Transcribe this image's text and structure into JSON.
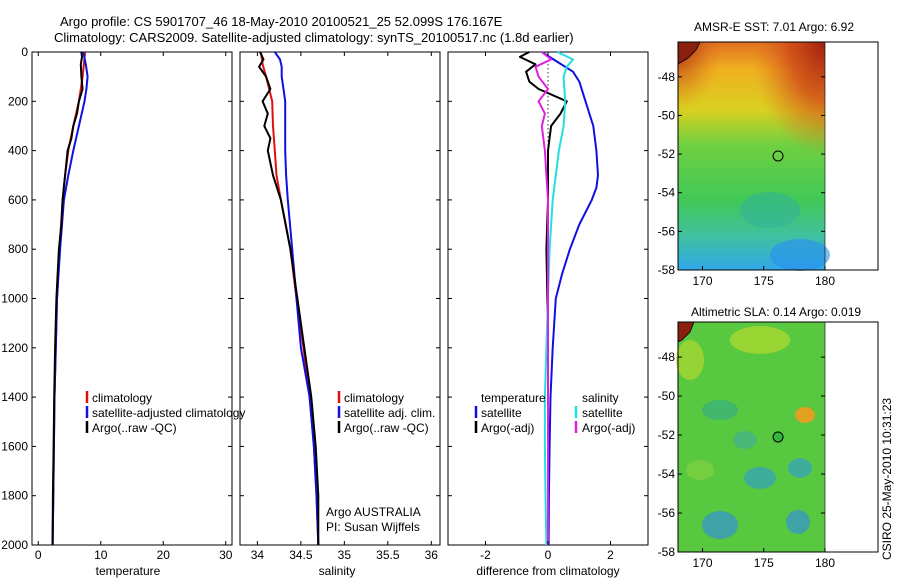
{
  "header": {
    "line1": "Argo profile: CS 5901707_46 18-May-2010 20100521_25 52.099S 176.167E",
    "line2": "Climatology: CARS2009. Satellite-adjusted climatology: synTS_20100517.nc (1.8d earlier)"
  },
  "footer": {
    "timestamp": "CSIRO 25-May-2010 10:31:23"
  },
  "colors": {
    "climatology": "#e01010",
    "satellite": "#1010e0",
    "argo": "#000000",
    "salinity_satellite": "#22e0e0",
    "salinity_argo": "#e020e0"
  },
  "chart_data": [
    {
      "type": "line",
      "xlabel": "temperature",
      "ylim": [
        2000,
        0
      ],
      "xlim": [
        -1,
        31
      ],
      "xticks": [
        0,
        10,
        20,
        30
      ],
      "yticks": [
        0,
        200,
        400,
        600,
        800,
        1000,
        1200,
        1400,
        1600,
        1800,
        2000
      ],
      "legend": [
        "climatology",
        "satellite-adjusted climatology",
        "Argo(..raw -QC)"
      ],
      "legend_placement": "lower-left",
      "series": [
        {
          "key": "climatology",
          "depth": [
            0,
            50,
            100,
            150,
            200,
            300,
            400,
            500,
            600,
            800,
            1000,
            1200,
            1400,
            1600,
            1800,
            2000
          ],
          "values": [
            7.5,
            7.3,
            7.1,
            6.8,
            6.5,
            5.6,
            4.8,
            4.3,
            3.9,
            3.4,
            3.0,
            2.8,
            2.6,
            2.5,
            2.4,
            2.3
          ]
        },
        {
          "key": "satellite",
          "depth": [
            0,
            50,
            100,
            150,
            200,
            300,
            400,
            500,
            600,
            800,
            1000,
            1200,
            1400,
            1600,
            1800,
            2000
          ],
          "values": [
            7.2,
            7.6,
            7.9,
            7.7,
            7.4,
            6.5,
            5.6,
            4.8,
            4.1,
            3.5,
            3.0,
            2.8,
            2.6,
            2.5,
            2.4,
            2.3
          ]
        },
        {
          "key": "argo",
          "depth": [
            0,
            20,
            50,
            100,
            150,
            200,
            250,
            300,
            350,
            400,
            500,
            600,
            700,
            800,
            1000,
            1200,
            1400,
            1600,
            1800,
            2000
          ],
          "values": [
            6.9,
            7.0,
            6.8,
            6.9,
            7.1,
            6.5,
            6.2,
            5.6,
            5.3,
            4.7,
            4.3,
            3.9,
            3.7,
            3.3,
            2.9,
            2.7,
            2.55,
            2.45,
            2.35,
            2.3
          ]
        }
      ]
    },
    {
      "type": "line",
      "xlabel": "salinity",
      "ylim": [
        2000,
        0
      ],
      "xlim": [
        33.8,
        36.1
      ],
      "xticks": [
        34,
        34.5,
        35,
        35.5,
        36
      ],
      "legend": [
        "climatology",
        "satellite adj. clim.",
        "Argo(..raw -QC)"
      ],
      "legend_placement": "lower-right",
      "annotation_line1": "Argo AUSTRALIA",
      "annotation_line2": "PI: Susan Wijffels",
      "series": [
        {
          "key": "climatology",
          "depth": [
            0,
            50,
            100,
            200,
            300,
            400,
            500,
            600,
            800,
            1000,
            1200,
            1400,
            1600,
            1800,
            2000
          ],
          "values": [
            34.04,
            34.06,
            34.1,
            34.17,
            34.18,
            34.2,
            34.22,
            34.27,
            34.38,
            34.45,
            34.53,
            34.6,
            34.65,
            34.68,
            34.7
          ]
        },
        {
          "key": "satellite",
          "depth": [
            0,
            30,
            60,
            100,
            150,
            200,
            300,
            400,
            500,
            600,
            800,
            1000,
            1200,
            1400,
            1600,
            1800,
            2000
          ],
          "values": [
            34.2,
            34.26,
            34.28,
            34.28,
            34.3,
            34.32,
            34.32,
            34.32,
            34.33,
            34.35,
            34.4,
            34.45,
            34.5,
            34.6,
            34.65,
            34.68,
            34.7
          ]
        },
        {
          "key": "argo",
          "depth": [
            0,
            30,
            60,
            100,
            150,
            200,
            250,
            300,
            350,
            400,
            500,
            600,
            800,
            1000,
            1200,
            1400,
            1600,
            1800,
            2000
          ],
          "values": [
            34.03,
            34.07,
            34.02,
            34.1,
            34.15,
            34.06,
            34.12,
            34.08,
            34.15,
            34.12,
            34.18,
            34.27,
            34.38,
            34.46,
            34.54,
            34.62,
            34.67,
            34.7,
            34.7
          ]
        }
      ]
    },
    {
      "type": "line",
      "xlabel": "difference from climatology",
      "ylim": [
        2000,
        0
      ],
      "xlim": [
        -3.2,
        3.2
      ],
      "xticks": [
        -2,
        0,
        2
      ],
      "legend_temp_title": "temperature",
      "legend_sal_title": "salinity",
      "legend_temp": [
        "satellite",
        "Argo(-adj)"
      ],
      "legend_sal": [
        "satellite",
        "Argo(-adj)"
      ],
      "legend_placement": "lower-center",
      "series": [
        {
          "key": "satellite",
          "group": "temperature",
          "depth": [
            0,
            40,
            80,
            120,
            200,
            300,
            400,
            500,
            550,
            600,
            700,
            800,
            900,
            1000,
            1200,
            1400,
            1600,
            1800,
            2000
          ],
          "values": [
            -0.2,
            0.3,
            0.8,
            1.0,
            1.2,
            1.45,
            1.55,
            1.6,
            1.55,
            1.4,
            1.0,
            0.7,
            0.45,
            0.25,
            0.15,
            0.08,
            0.05,
            0.03,
            0.02
          ]
        },
        {
          "key": "argo",
          "group": "temperature",
          "depth": [
            0,
            20,
            50,
            80,
            120,
            150,
            200,
            250,
            300,
            400,
            500,
            600,
            800,
            1000,
            1200,
            1400,
            1600,
            1800,
            2000
          ],
          "values": [
            -0.6,
            -0.9,
            -0.4,
            -0.7,
            -0.6,
            -0.3,
            0.6,
            0.4,
            0.1,
            0.0,
            0.0,
            0.0,
            -0.05,
            -0.02,
            0.0,
            0.0,
            0.0,
            0.0,
            0.0
          ]
        },
        {
          "key": "salinity_satellite",
          "group": "salinity",
          "depth": [
            0,
            30,
            60,
            100,
            200,
            300,
            400,
            500,
            600,
            800,
            1000,
            1200,
            1400,
            1600,
            1800,
            2000
          ],
          "values": [
            0.3,
            0.8,
            0.6,
            0.5,
            0.55,
            0.5,
            0.35,
            0.25,
            0.15,
            0.05,
            0.0,
            -0.05,
            -0.1,
            -0.1,
            -0.08,
            -0.05
          ]
        },
        {
          "key": "salinity_argo",
          "group": "salinity",
          "depth": [
            0,
            30,
            60,
            100,
            150,
            200,
            250,
            300,
            400,
            500,
            600,
            800,
            1000,
            1200,
            1400,
            1600,
            1800,
            2000
          ],
          "values": [
            -0.2,
            0.1,
            -0.4,
            -0.3,
            0.0,
            -0.3,
            -0.1,
            -0.2,
            -0.1,
            -0.05,
            0.0,
            0.0,
            0.0,
            0.0,
            0.0,
            0.0,
            0.0,
            0.0
          ]
        }
      ]
    },
    {
      "type": "heatmap",
      "title": "AMSR-E SST: 7.01 Argo: 6.92",
      "xlim": [
        168,
        180
      ],
      "ylim": [
        -58,
        -46.2
      ],
      "xticks": [
        170,
        175,
        180
      ],
      "yticks": [
        -48,
        -50,
        -52,
        -54,
        -56,
        -58
      ],
      "float_lon": 176.167,
      "float_lat": -52.099
    },
    {
      "type": "heatmap",
      "title": "Altimetric SLA: 0.14 Argo: 0.019",
      "xlim": [
        168,
        180
      ],
      "ylim": [
        -58,
        -46.2
      ],
      "xticks": [
        170,
        175,
        180
      ],
      "yticks": [
        -48,
        -50,
        -52,
        -54,
        -56,
        -58
      ],
      "float_lon": 176.167,
      "float_lat": -52.099
    }
  ]
}
